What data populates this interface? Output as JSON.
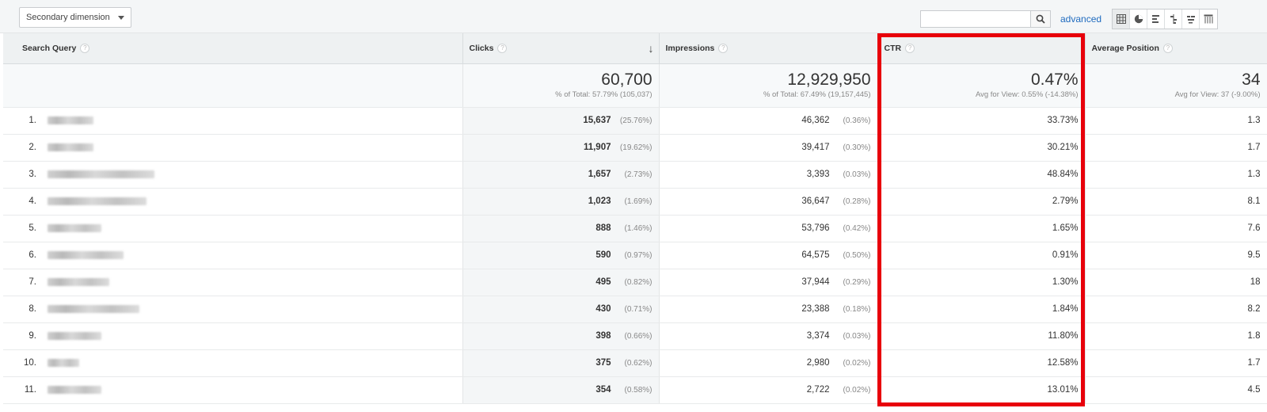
{
  "toolbar": {
    "secondary_dimension_label": "Secondary dimension",
    "search_placeholder": "",
    "advanced_label": "advanced",
    "view_icons": [
      "table-view-icon",
      "pie-view-icon",
      "performance-view-icon",
      "comparison-view-icon",
      "term-cloud-view-icon",
      "pivot-view-icon"
    ]
  },
  "table": {
    "columns": {
      "search_query": "Search Query",
      "clicks": "Clicks",
      "impressions": "Impressions",
      "ctr": "CTR",
      "avg_position": "Average Position",
      "help": "?"
    },
    "totals": {
      "clicks": "60,700",
      "clicks_sub": "% of Total: 57.79% (105,037)",
      "impressions": "12,929,950",
      "impressions_sub": "% of Total: 67.49% (19,157,445)",
      "ctr": "0.47%",
      "ctr_sub": "Avg for View: 0.55% (-14.38%)",
      "avg_position": "34",
      "avg_position_sub": "Avg for View: 37 (-9.00%)"
    },
    "rows": [
      {
        "idx": "1.",
        "clicks": "15,637",
        "clicks_pct": "(25.76%)",
        "impressions": "46,362",
        "impressions_pct": "(0.36%)",
        "ctr": "33.73%",
        "pos": "1.3"
      },
      {
        "idx": "2.",
        "clicks": "11,907",
        "clicks_pct": "(19.62%)",
        "impressions": "39,417",
        "impressions_pct": "(0.30%)",
        "ctr": "30.21%",
        "pos": "1.7"
      },
      {
        "idx": "3.",
        "clicks": "1,657",
        "clicks_pct": "(2.73%)",
        "impressions": "3,393",
        "impressions_pct": "(0.03%)",
        "ctr": "48.84%",
        "pos": "1.3"
      },
      {
        "idx": "4.",
        "clicks": "1,023",
        "clicks_pct": "(1.69%)",
        "impressions": "36,647",
        "impressions_pct": "(0.28%)",
        "ctr": "2.79%",
        "pos": "8.1"
      },
      {
        "idx": "5.",
        "clicks": "888",
        "clicks_pct": "(1.46%)",
        "impressions": "53,796",
        "impressions_pct": "(0.42%)",
        "ctr": "1.65%",
        "pos": "7.6"
      },
      {
        "idx": "6.",
        "clicks": "590",
        "clicks_pct": "(0.97%)",
        "impressions": "64,575",
        "impressions_pct": "(0.50%)",
        "ctr": "0.91%",
        "pos": "9.5"
      },
      {
        "idx": "7.",
        "clicks": "495",
        "clicks_pct": "(0.82%)",
        "impressions": "37,944",
        "impressions_pct": "(0.29%)",
        "ctr": "1.30%",
        "pos": "18"
      },
      {
        "idx": "8.",
        "clicks": "430",
        "clicks_pct": "(0.71%)",
        "impressions": "23,388",
        "impressions_pct": "(0.18%)",
        "ctr": "1.84%",
        "pos": "8.2"
      },
      {
        "idx": "9.",
        "clicks": "398",
        "clicks_pct": "(0.66%)",
        "impressions": "3,374",
        "impressions_pct": "(0.03%)",
        "ctr": "11.80%",
        "pos": "1.8"
      },
      {
        "idx": "10.",
        "clicks": "375",
        "clicks_pct": "(0.62%)",
        "impressions": "2,980",
        "impressions_pct": "(0.02%)",
        "ctr": "12.58%",
        "pos": "1.7"
      },
      {
        "idx": "11.",
        "clicks": "354",
        "clicks_pct": "(0.58%)",
        "impressions": "2,722",
        "impressions_pct": "(0.02%)",
        "ctr": "13.01%",
        "pos": "4.5"
      }
    ]
  },
  "colors": {
    "highlight": "#e8000b",
    "link": "#1f6bbf",
    "header_bg": "#eef1f2"
  }
}
